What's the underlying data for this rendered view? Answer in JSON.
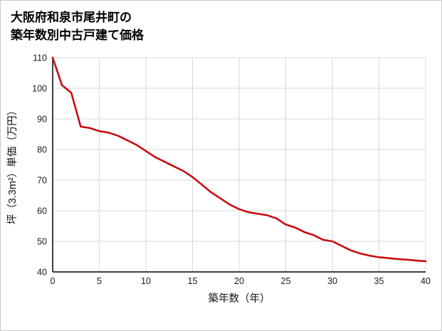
{
  "title": {
    "line1": "大阪府和泉市尾井町の",
    "line2": "築年数別中古戸建て価格"
  },
  "chart_data": {
    "type": "line",
    "title": "大阪府和泉市尾井町の築年数別中古戸建て価格",
    "xlabel": "築年数（年）",
    "ylabel": "坪（3.3m²）単価（万円）",
    "xlim": [
      0,
      40
    ],
    "ylim": [
      40,
      110
    ],
    "x_ticks": [
      0,
      5,
      10,
      15,
      20,
      25,
      30,
      35,
      40
    ],
    "y_ticks": [
      40,
      50,
      60,
      70,
      80,
      90,
      100,
      110
    ],
    "grid": true,
    "legend": "none",
    "line_color": "#c90d0d",
    "grid_color": "#d9d9d9",
    "axis_color": "#000000",
    "series": [
      {
        "name": "坪単価",
        "x": [
          0,
          1,
          2,
          3,
          4,
          5,
          6,
          7,
          8,
          9,
          10,
          11,
          12,
          13,
          14,
          15,
          16,
          17,
          18,
          19,
          20,
          21,
          22,
          23,
          24,
          25,
          26,
          27,
          28,
          29,
          30,
          31,
          32,
          33,
          34,
          35,
          36,
          37,
          38,
          39,
          40
        ],
        "values": [
          110,
          101,
          98.5,
          87.5,
          87,
          86,
          85.5,
          84.5,
          83,
          81.5,
          79.5,
          77.5,
          76,
          74.5,
          73,
          71,
          68.5,
          66,
          64,
          62,
          60.5,
          59.5,
          59,
          58.5,
          57.5,
          55.5,
          54.5,
          53,
          52,
          50.5,
          50,
          48.5,
          47,
          46,
          45.3,
          44.8,
          44.5,
          44.2,
          44,
          43.7,
          43.5
        ]
      }
    ]
  }
}
